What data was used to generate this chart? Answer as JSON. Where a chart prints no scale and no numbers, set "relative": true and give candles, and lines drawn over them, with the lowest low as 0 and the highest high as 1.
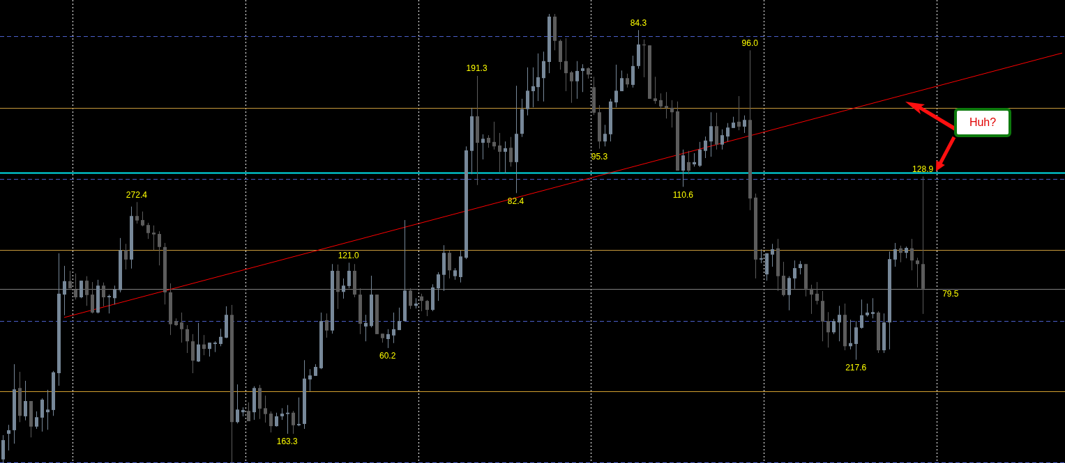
{
  "chart_data": {
    "type": "candlestick",
    "relative": true,
    "legend": false,
    "marker": "none",
    "categories": [
      null,
      null,
      null,
      null,
      null,
      null,
      null,
      null,
      null,
      null,
      null,
      null,
      null,
      null,
      null,
      null,
      null,
      null,
      null,
      null,
      null,
      null,
      null,
      null,
      null,
      null,
      null,
      null,
      null,
      null,
      null,
      null,
      null,
      null,
      null,
      null,
      null,
      null,
      null,
      null,
      null,
      null,
      null,
      null,
      null,
      null,
      null,
      null,
      null,
      null,
      null,
      null,
      null,
      null,
      null,
      null,
      null,
      null,
      null,
      null,
      null,
      null,
      null,
      null,
      null,
      null,
      null,
      null,
      null,
      null,
      null,
      null,
      null,
      null,
      null,
      null,
      null,
      null,
      null,
      null,
      null,
      null,
      null,
      null,
      null,
      null,
      null,
      null,
      null,
      null,
      null,
      null,
      null,
      null,
      null,
      null,
      null,
      null,
      null,
      null,
      null,
      null,
      null,
      null,
      null,
      null,
      null,
      null,
      null,
      null,
      null,
      null,
      null,
      null,
      null,
      null,
      null,
      null,
      null,
      null,
      null,
      null,
      null,
      null,
      null,
      null,
      null,
      null,
      null,
      null,
      null,
      null,
      null,
      null,
      null,
      null,
      null,
      null,
      null,
      null,
      null,
      null,
      null,
      null,
      null,
      null,
      null,
      null,
      null,
      null,
      null,
      null,
      null,
      null,
      null,
      null,
      null,
      null,
      null,
      null,
      null,
      null,
      null,
      null,
      null,
      null,
      null,
      null,
      null,
      null,
      null,
      null,
      null,
      null,
      null,
      null,
      null,
      null,
      null,
      null,
      null,
      null,
      null,
      null,
      null,
      null,
      null,
      null,
      null,
      null,
      null
    ],
    "ohlc": [
      [
        0.008,
        0.062,
        0,
        0.051
      ],
      [
        0.065,
        0.085,
        0.028,
        0.073
      ],
      [
        0.073,
        0.22,
        0.043,
        0.164
      ],
      [
        0.167,
        0.203,
        0.091,
        0.105
      ],
      [
        0.104,
        0.183,
        0.095,
        0.138
      ],
      [
        0.138,
        0.138,
        0.057,
        0.081
      ],
      [
        0.081,
        0.115,
        0.076,
        0.102
      ],
      [
        0.101,
        0.144,
        0.07,
        0.141
      ],
      [
        0.113,
        0.163,
        0.074,
        0.119
      ],
      [
        0.118,
        0.205,
        0.105,
        0.202
      ],
      [
        0.2,
        0.467,
        0.172,
        0.377
      ],
      [
        0.375,
        0.439,
        0.329,
        0.405
      ],
      [
        0.405,
        0.428,
        0.389,
        0.389
      ],
      [
        0.386,
        0.422,
        0.364,
        0.369
      ],
      [
        0.369,
        0.406,
        0.367,
        0.406
      ],
      [
        0.406,
        0.416,
        0.35,
        0.374
      ],
      [
        0.375,
        0.403,
        0.333,
        0.335
      ],
      [
        0.335,
        0.408,
        0.333,
        0.395
      ],
      [
        0.395,
        0.402,
        0.349,
        0.369
      ],
      [
        0.369,
        0.375,
        0.333,
        0.372
      ],
      [
        0.367,
        0.395,
        0.353,
        0.386
      ],
      [
        0.385,
        0.501,
        0.38,
        0.474
      ],
      [
        0.474,
        0.488,
        0.431,
        0.453
      ],
      [
        0.453,
        0.571,
        0.433,
        0.55
      ],
      [
        0.55,
        0.581,
        0.533,
        0.54
      ],
      [
        0.541,
        0.56,
        0.527,
        0.529
      ],
      [
        0.53,
        0.535,
        0.499,
        0.512
      ],
      [
        0.513,
        0.529,
        0.474,
        0.509
      ],
      [
        0.51,
        0.516,
        0.44,
        0.481
      ],
      [
        0.481,
        0.49,
        0.353,
        0.38
      ],
      [
        0.38,
        0.4,
        0.285,
        0.309
      ],
      [
        0.316,
        0.322,
        0.305,
        0.307
      ],
      [
        0.313,
        0.335,
        0.268,
        0.298
      ],
      [
        0.298,
        0.307,
        0.245,
        0.271
      ],
      [
        0.271,
        0.287,
        0.2,
        0.228
      ],
      [
        0.226,
        0.312,
        0.225,
        0.264
      ],
      [
        0.264,
        0.285,
        0.24,
        0.254
      ],
      [
        0.254,
        0.268,
        0.237,
        0.268
      ],
      [
        0.265,
        0.271,
        0.247,
        0.268
      ],
      [
        0.265,
        0.299,
        0.26,
        0.281
      ],
      [
        0.279,
        0.349,
        0.278,
        0.33
      ],
      [
        0.33,
        0.352,
        0,
        0.091
      ],
      [
        0.091,
        0.175,
        0.088,
        0.119
      ],
      [
        0.113,
        0.124,
        0.104,
        0.118
      ],
      [
        0.116,
        0.135,
        0.093,
        0.093
      ],
      [
        0.113,
        0.171,
        0.096,
        0.167
      ],
      [
        0.167,
        0.174,
        0.098,
        0.121
      ],
      [
        0.122,
        0.15,
        0.09,
        0.109
      ],
      [
        0.11,
        0.115,
        0.068,
        0.082
      ],
      [
        0.082,
        0.112,
        0.081,
        0.104
      ],
      [
        0.104,
        0.122,
        0.096,
        0.11
      ],
      [
        0.109,
        0.129,
        0.065,
        0.112
      ],
      [
        0.112,
        0.116,
        0.065,
        0.084
      ],
      [
        0.084,
        0.146,
        0.082,
        0.087
      ],
      [
        0.087,
        0.229,
        0.076,
        0.188
      ],
      [
        0.186,
        0.209,
        0.16,
        0.195
      ],
      [
        0.194,
        0.22,
        0.194,
        0.214
      ],
      [
        0.211,
        0.335,
        0.209,
        0.316
      ],
      [
        0.318,
        0.333,
        0.279,
        0.295
      ],
      [
        0.295,
        0.443,
        0.288,
        0.428
      ],
      [
        0.428,
        0.442,
        0.343,
        0.381
      ],
      [
        0.381,
        0.411,
        0.366,
        0.395
      ],
      [
        0.394,
        0.446,
        0.389,
        0.428
      ],
      [
        0.428,
        0.443,
        0.369,
        0.375
      ],
      [
        0.375,
        0.389,
        0.287,
        0.31
      ],
      [
        0.304,
        0.33,
        0.271,
        0.312
      ],
      [
        0.305,
        0.417,
        0.302,
        0.375
      ],
      [
        0.375,
        0.375,
        0.287,
        0.287
      ],
      [
        0.288,
        0.288,
        0.268,
        0.278
      ],
      [
        0.276,
        0.298,
        0.256,
        0.287
      ],
      [
        0.284,
        0.335,
        0.267,
        0.298
      ],
      [
        0.296,
        0.346,
        0.296,
        0.316
      ],
      [
        0.316,
        0.541,
        0.316,
        0.384
      ],
      [
        0.384,
        0.389,
        0.343,
        0.35
      ],
      [
        0.35,
        0.367,
        0.344,
        0.355
      ],
      [
        0.371,
        0.377,
        0.338,
        0.361
      ],
      [
        0.361,
        0.363,
        0.327,
        0.341
      ],
      [
        0.341,
        0.398,
        0.338,
        0.391
      ],
      [
        0.389,
        0.425,
        0.361,
        0.42
      ],
      [
        0.419,
        0.485,
        0.383,
        0.468
      ],
      [
        0.468,
        0.473,
        0.411,
        0.429
      ],
      [
        0.416,
        0.434,
        0.408,
        0.429
      ],
      [
        0.414,
        0.473,
        0.402,
        0.46
      ],
      [
        0.457,
        0.705,
        0.454,
        0.696
      ],
      [
        0.695,
        0.791,
        0.643,
        0.772
      ],
      [
        0.772,
        0.862,
        0.619,
        0.713
      ],
      [
        0.713,
        0.732,
        0.676,
        0.722
      ],
      [
        0.724,
        0.73,
        0.702,
        0.713
      ],
      [
        0.715,
        0.76,
        0.698,
        0.705
      ],
      [
        0.707,
        0.735,
        0.648,
        0.693
      ],
      [
        0.693,
        0.716,
        0.645,
        0.701
      ],
      [
        0.702,
        0.726,
        0.66,
        0.67
      ],
      [
        0.67,
        0.84,
        0.601,
        0.733
      ],
      [
        0.733,
        0.811,
        0.726,
        0.788
      ],
      [
        0.788,
        0.881,
        0.774,
        0.829
      ],
      [
        0.828,
        0.881,
        0.792,
        0.839
      ],
      [
        0.837,
        0.912,
        0.806,
        0.859
      ],
      [
        0.857,
        0.916,
        0.805,
        0.895
      ],
      [
        0.893,
        1,
        0.868,
        0.994
      ],
      [
        0.994,
        1,
        0.919,
        0.94
      ],
      [
        0.94,
        0.943,
        0.876,
        0.893
      ],
      [
        0.895,
        0.946,
        0.828,
        0.868
      ],
      [
        0.87,
        0.873,
        0.802,
        0.85
      ],
      [
        0.85,
        0.895,
        0.811,
        0.873
      ],
      [
        0.873,
        0.888,
        0.826,
        0.879
      ],
      [
        0.879,
        0.881,
        0.856,
        0.865
      ],
      [
        0.837,
        0.86,
        0.775,
        0.78
      ],
      [
        0.781,
        0.797,
        0.7,
        0.716
      ],
      [
        0.716,
        0.753,
        0.705,
        0.733
      ],
      [
        0.732,
        0.811,
        0.716,
        0.805
      ],
      [
        0.803,
        0.887,
        0.792,
        0.829
      ],
      [
        0.828,
        0.874,
        0.828,
        0.857
      ],
      [
        0.857,
        0.867,
        0.836,
        0.843
      ],
      [
        0.842,
        0.907,
        0.836,
        0.884
      ],
      [
        0.884,
        0.964,
        0.878,
        0.932
      ],
      [
        0.932,
        0.943,
        0.859,
        0.93
      ],
      [
        0.93,
        0.93,
        0.811,
        0.811
      ],
      [
        0.812,
        0.86,
        0.8,
        0.806
      ],
      [
        0.808,
        0.823,
        0.788,
        0.794
      ],
      [
        0.795,
        0.826,
        0.767,
        0.791
      ],
      [
        0.791,
        0.808,
        0.747,
        0.781
      ],
      [
        0.783,
        0.805,
        0.651,
        0.651
      ],
      [
        0.651,
        0.698,
        0.615,
        0.685
      ],
      [
        0.67,
        0.695,
        0.643,
        0.651
      ],
      [
        0.665,
        0.69,
        0.66,
        0.67
      ],
      [
        0.662,
        0.715,
        0.659,
        0.698
      ],
      [
        0.695,
        0.727,
        0.679,
        0.718
      ],
      [
        0.716,
        0.781,
        0.682,
        0.75
      ],
      [
        0.75,
        0.78,
        0.698,
        0.709
      ],
      [
        0.709,
        0.743,
        0.698,
        0.73
      ],
      [
        0.727,
        0.757,
        0.716,
        0.747
      ],
      [
        0.746,
        0.771,
        0.746,
        0.758
      ],
      [
        0.76,
        0.817,
        0.741,
        0.749
      ],
      [
        0.749,
        0.774,
        0.735,
        0.764
      ],
      [
        0.764,
        0.919,
        0.563,
        0.589
      ],
      [
        0.591,
        0.6,
        0.411,
        0.453
      ],
      [
        0.453,
        0.476,
        0.445,
        0.456
      ],
      [
        0.42,
        0.467,
        0.406,
        0.467
      ],
      [
        0.464,
        0.488,
        0.437,
        0.476
      ],
      [
        0.478,
        0.499,
        0.383,
        0.416
      ],
      [
        0.417,
        0.448,
        0.371,
        0.374
      ],
      [
        0.374,
        0.416,
        0.34,
        0.412
      ],
      [
        0.411,
        0.451,
        0.388,
        0.434
      ],
      [
        0.434,
        0.45,
        0.42,
        0.443
      ],
      [
        0.443,
        0.443,
        0.371,
        0.388
      ],
      [
        0.388,
        0.397,
        0.332,
        0.375
      ],
      [
        0.377,
        0.403,
        0.353,
        0.361
      ],
      [
        0.361,
        0.383,
        0.271,
        0.315
      ],
      [
        0.316,
        0.336,
        0.257,
        0.291
      ],
      [
        0.291,
        0.321,
        0.287,
        0.316
      ],
      [
        0.313,
        0.35,
        0.271,
        0.33
      ],
      [
        0.33,
        0.355,
        0.251,
        0.26
      ],
      [
        0.26,
        0.319,
        0.253,
        0.267
      ],
      [
        0.265,
        0.316,
        0.23,
        0.302
      ],
      [
        0.301,
        0.364,
        0.299,
        0.329
      ],
      [
        0.329,
        0.355,
        0.326,
        0.335
      ],
      [
        0.332,
        0.367,
        0.322,
        0.336
      ],
      [
        0.335,
        0.338,
        0.245,
        0.251
      ],
      [
        0.251,
        0.333,
        0.245,
        0.313
      ],
      [
        0.313,
        0.471,
        0.253,
        0.454
      ],
      [
        0.453,
        0.49,
        0.437,
        0.476
      ],
      [
        0.478,
        0.484,
        0.447,
        0.468
      ],
      [
        0.468,
        0.482,
        0.456,
        0.479
      ],
      [
        0.478,
        0.499,
        0.429,
        0.451
      ],
      [
        0.451,
        0.457,
        0.391,
        0.443
      ],
      [
        0.443,
        0.638,
        0.332,
        0.388
      ],
      null,
      null,
      null,
      null,
      null,
      null,
      null,
      null,
      null,
      null,
      null,
      null,
      null,
      null,
      null,
      null,
      null,
      null,
      null,
      null,
      null,
      null,
      null,
      null,
      null
    ],
    "colors": [
      "#778899",
      "#778899",
      "#778899",
      "#5c5c5c",
      "#778899",
      "#5c5c5c",
      "#778899",
      "#778899",
      "#778899",
      "#778899",
      "#778899",
      "#778899",
      "#5c5c5c",
      "#5c5c5c",
      "#778899",
      "#5c5c5c",
      "#5c5c5c",
      "#778899",
      "#5c5c5c",
      "#778899",
      "#778899",
      "#778899",
      "#5c5c5c",
      "#778899",
      "#5c5c5c",
      "#5c5c5c",
      "#5c5c5c",
      "#5c5c5c",
      "#5c5c5c",
      "#5c5c5c",
      "#5c5c5c",
      "#5c5c5c",
      "#5c5c5c",
      "#5c5c5c",
      "#5c5c5c",
      "#778899",
      "#5c5c5c",
      "#778899",
      "#778899",
      "#778899",
      "#778899",
      "#5c5c5c",
      "#778899",
      "#778899",
      "#5c5c5c",
      "#778899",
      "#5c5c5c",
      "#5c5c5c",
      "#5c5c5c",
      "#778899",
      "#778899",
      "#778899",
      "#5c5c5c",
      "#778899",
      "#778899",
      "#778899",
      "#778899",
      "#778899",
      "#5c5c5c",
      "#778899",
      "#5c5c5c",
      "#778899",
      "#778899",
      "#5c5c5c",
      "#5c5c5c",
      "#778899",
      "#778899",
      "#5c5c5c",
      "#5c5c5c",
      "#778899",
      "#778899",
      "#778899",
      "#778899",
      "#5c5c5c",
      "#778899",
      "#5c5c5c",
      "#5c5c5c",
      "#778899",
      "#778899",
      "#778899",
      "#5c5c5c",
      "#778899",
      "#778899",
      "#778899",
      "#778899",
      "#5c5c5c",
      "#778899",
      "#5c5c5c",
      "#5c5c5c",
      "#5c5c5c",
      "#778899",
      "#5c5c5c",
      "#778899",
      "#778899",
      "#778899",
      "#778899",
      "#778899",
      "#778899",
      "#778899",
      "#5c5c5c",
      "#5c5c5c",
      "#5c5c5c",
      "#5c5c5c",
      "#778899",
      "#778899",
      "#5c5c5c",
      "#5c5c5c",
      "#5c5c5c",
      "#778899",
      "#778899",
      "#778899",
      "#778899",
      "#5c5c5c",
      "#778899",
      "#778899",
      "#5c5c5c",
      "#5c5c5c",
      "#5c5c5c",
      "#5c5c5c",
      "#5c5c5c",
      "#5c5c5c",
      "#5c5c5c",
      "#778899",
      "#5c5c5c",
      "#778899",
      "#778899",
      "#778899",
      "#778899",
      "#5c5c5c",
      "#778899",
      "#778899",
      "#778899",
      "#5c5c5c",
      "#778899",
      "#5c5c5c",
      "#5c5c5c",
      "#778899",
      "#778899",
      "#778899",
      "#5c5c5c",
      "#5c5c5c",
      "#778899",
      "#778899",
      "#778899",
      "#5c5c5c",
      "#5c5c5c",
      "#5c5c5c",
      "#5c5c5c",
      "#5c5c5c",
      "#778899",
      "#778899",
      "#5c5c5c",
      "#778899",
      "#778899",
      "#778899",
      "#778899",
      "#778899",
      "#5c5c5c",
      "#778899",
      "#778899",
      "#778899",
      "#5c5c5c",
      "#778899",
      "#5c5c5c",
      "#5c5c5c",
      "#5c5c5c",
      null,
      null,
      null,
      null,
      null,
      null,
      null,
      null,
      null,
      null,
      null,
      null,
      null,
      null,
      null,
      null,
      null,
      null,
      null,
      null,
      null,
      null,
      null,
      null,
      null
    ],
    "series": [
      {
        "type": "line",
        "color": "#ff0000",
        "values": [
          null,
          null,
          null,
          null,
          null,
          null,
          null,
          null,
          null,
          null,
          null,
          0.324,
          null,
          null,
          null,
          null,
          null,
          null,
          null,
          null,
          null,
          null,
          null,
          null,
          null,
          null,
          null,
          null,
          null,
          null,
          null,
          null,
          null,
          null,
          null,
          null,
          null,
          null,
          null,
          null,
          null,
          null,
          null,
          null,
          null,
          null,
          null,
          null,
          null,
          null,
          null,
          null,
          null,
          null,
          null,
          null,
          null,
          null,
          null,
          null,
          null,
          null,
          null,
          null,
          null,
          null,
          null,
          null,
          null,
          null,
          null,
          null,
          null,
          null,
          null,
          null,
          null,
          null,
          null,
          null,
          null,
          null,
          null,
          null,
          null,
          null,
          null,
          null,
          null,
          null,
          null,
          null,
          null,
          null,
          null,
          null,
          null,
          null,
          null,
          null,
          null,
          null,
          null,
          null,
          null,
          null,
          null,
          null,
          null,
          null,
          null,
          null,
          null,
          null,
          null,
          null,
          null,
          null,
          null,
          null,
          null,
          null,
          null,
          null,
          null,
          null,
          null,
          null,
          null,
          null,
          null,
          null,
          null,
          null,
          null,
          null,
          null,
          null,
          null,
          null,
          null,
          null,
          null,
          null,
          null,
          null,
          null,
          null,
          null,
          null,
          null,
          null,
          null,
          null,
          null,
          null,
          null,
          null,
          null,
          null,
          null,
          null,
          null,
          null,
          null,
          null,
          null,
          null,
          null,
          null,
          null,
          null,
          null,
          null,
          null,
          null,
          null,
          null,
          null,
          null,
          null,
          null,
          null,
          null,
          null,
          null,
          null,
          null,
          null,
          null,
          0.913
        ]
      }
    ],
    "ref_lines": [
      {
        "axis": "y",
        "value": 0.95,
        "color": "#4a5ec8",
        "line_style": "dashed"
      },
      {
        "axis": "y",
        "value": 0.791,
        "color": "#c89b3c",
        "line_style": "solid"
      },
      {
        "axis": "y",
        "value": 0.647,
        "color": "#00e5ee",
        "line_style": "solid"
      },
      {
        "axis": "y",
        "value": 0.633,
        "color": "#4a5ec8",
        "line_style": "dashed"
      },
      {
        "axis": "y",
        "value": 0.474,
        "color": "#c89b3c",
        "line_style": "solid"
      },
      {
        "axis": "y",
        "value": 0.388,
        "color": "#808080",
        "line_style": "solid"
      },
      {
        "axis": "y",
        "value": 0.316,
        "color": "#4a5ec8",
        "line_style": "dashed"
      },
      {
        "axis": "y",
        "value": 0.16,
        "color": "#d4a030",
        "line_style": "solid"
      },
      {
        "axis": "y",
        "value": 0.002,
        "color": "#4a5ec8",
        "line_style": "dashed"
      }
    ],
    "annotations": [
      {
        "text": "272.4",
        "y": 0.581
      },
      {
        "text": "163.3",
        "y": 0.065
      },
      {
        "text": "121.0",
        "y": 0.446
      },
      {
        "text": "60.2",
        "y": 0.256
      },
      {
        "text": "191.3",
        "y": 0.862
      },
      {
        "text": "82.4",
        "y": 0.601
      },
      {
        "text": "84.3",
        "y": 0.964
      },
      {
        "text": "95.3",
        "y": 0.7
      },
      {
        "text": "110.6",
        "y": 0.615
      },
      {
        "text": "96.0",
        "y": 0.919
      },
      {
        "text": "217.6",
        "y": 0.23
      },
      {
        "text": "128.9",
        "y": 0.638
      },
      {
        "text": "79.5",
        "y": 0.388
      },
      "Huh?"
    ]
  }
}
